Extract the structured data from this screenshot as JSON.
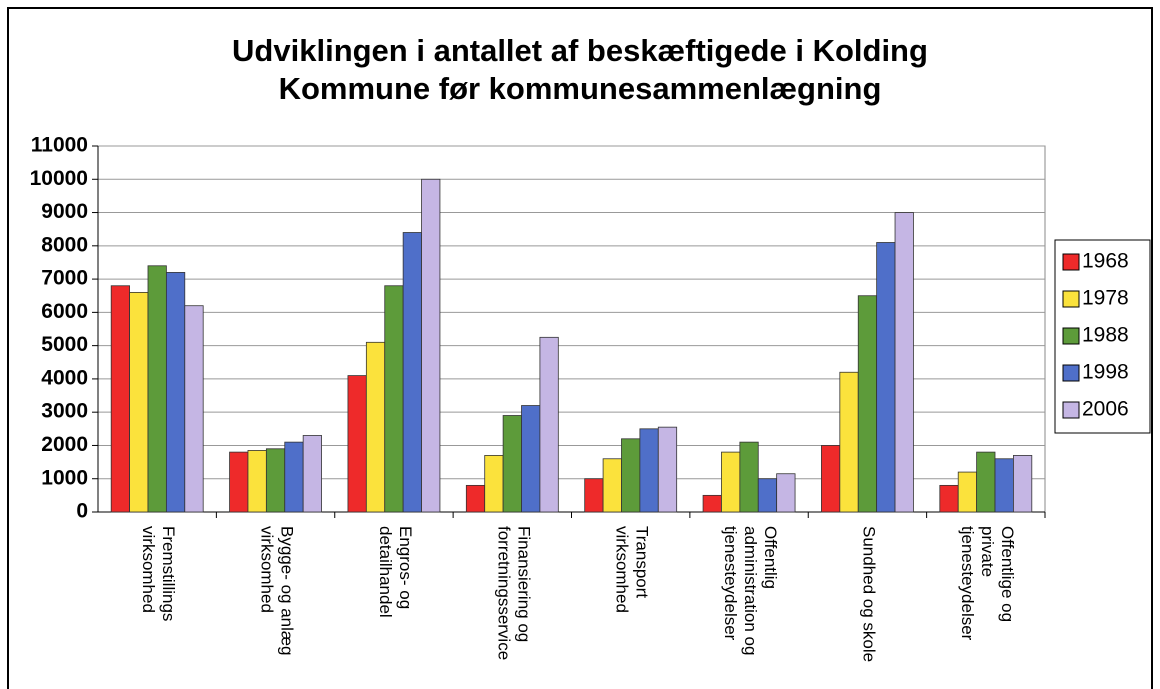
{
  "chart_data": {
    "type": "bar",
    "title": "Udviklingen i antallet af beskæftigede i Kolding\nKommune før kommunesammenlægning",
    "categories": [
      "Fremstillings\nvirksomhed",
      "Bygge- og anlæg\nvirksomhed",
      "Engros- og\ndetailhandel",
      "Finansiering og\nforretningsservice",
      "Transport\nvirksomhed",
      "Offentlig\nadministration og\ntjenesteydelser",
      "Sundhed og skole",
      "Offentlige og\nprivate\ntjenesteydelser"
    ],
    "series": [
      {
        "name": "1968",
        "color": "#ee2a2a",
        "values": [
          6800,
          1800,
          4100,
          800,
          1000,
          500,
          2000,
          800
        ]
      },
      {
        "name": "1978",
        "color": "#fbe23c",
        "values": [
          6600,
          1850,
          5100,
          1700,
          1600,
          1800,
          4200,
          1200
        ]
      },
      {
        "name": "1988",
        "color": "#5d9b3a",
        "values": [
          7400,
          1900,
          6800,
          2900,
          2200,
          2100,
          6500,
          1800
        ]
      },
      {
        "name": "1998",
        "color": "#4f6fc9",
        "values": [
          7200,
          2100,
          8400,
          3200,
          2500,
          1000,
          8100,
          1600
        ]
      },
      {
        "name": "2006",
        "color": "#c5b6e4",
        "values": [
          6200,
          2300,
          10000,
          5250,
          2550,
          1150,
          9000,
          1700
        ]
      }
    ],
    "ylim": [
      0,
      11000
    ],
    "yticks": [
      0,
      1000,
      2000,
      3000,
      4000,
      5000,
      6000,
      7000,
      8000,
      9000,
      10000,
      11000
    ],
    "grid": true,
    "legend": "right"
  }
}
